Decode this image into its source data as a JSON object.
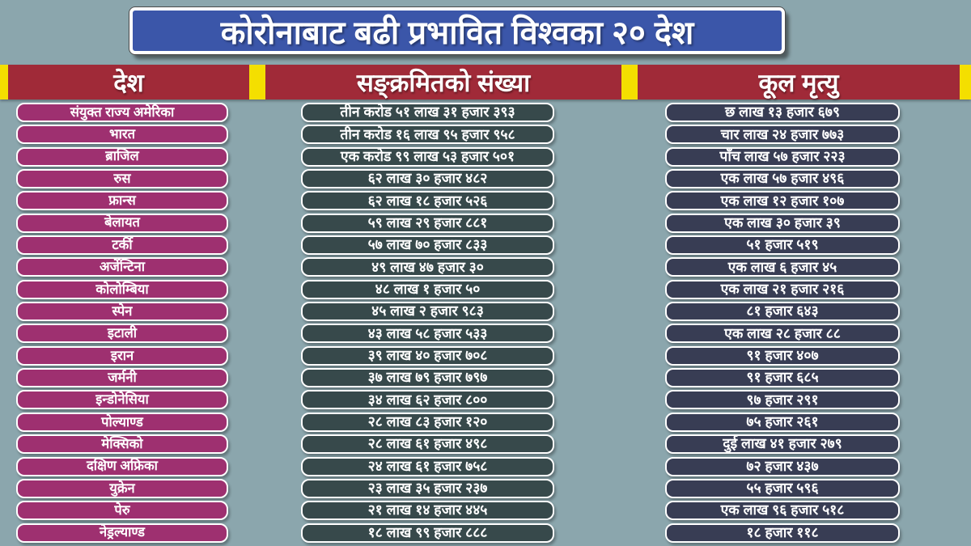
{
  "title": "कोरोनाबाट बढी प्रभावित विश्वका २० देश",
  "colors": {
    "background": "#8BA6AD",
    "title_banner": "#3B56A9",
    "header_band": "#A02A38",
    "separator_yellow": "#F4DF00",
    "country_pill": "#9E3070",
    "infected_pill": "#37494B",
    "deaths_pill": "#383D54",
    "text": "#FFFFFF"
  },
  "header": {
    "country": "देश",
    "infected": "सङ्क्रमितको संख्या",
    "deaths": "कूल मृत्यु"
  },
  "table": {
    "rows": [
      {
        "country": "संयुक्त राज्य अमेरिका",
        "infected": "तीन करोड ५१ लाख ३१ हजार ३९३",
        "deaths": "छ लाख १३ हजार ६७९"
      },
      {
        "country": "भारत",
        "infected": "तीन करोड १६ लाख ९५ हजार ९५८",
        "deaths": "चार लाख २४ हजार ७७३"
      },
      {
        "country": "ब्राजिल",
        "infected": "एक करोड ९९ लाख ५३ हजार ५०१",
        "deaths": "पाँच लाख ५७ हजार २२३"
      },
      {
        "country": "रुस",
        "infected": "६२ लाख ३० हजार ४८२",
        "deaths": "एक लाख ५७ हजार ४९६"
      },
      {
        "country": "फ्रान्स",
        "infected": "६२ लाख १८ हजार ५२६",
        "deaths": "एक लाख १२ हजार १०७"
      },
      {
        "country": "बेलायत",
        "infected": "५९ लाख २९ हजार ८८१",
        "deaths": "एक लाख ३० हजार ३९"
      },
      {
        "country": "टर्की",
        "infected": "५७ लाख ७०  हजार ८३३",
        "deaths": "५१ हजार ५१९"
      },
      {
        "country": "अर्जेन्टिना",
        "infected": "४९ लाख ४७  हजार ३०",
        "deaths": "एक लाख ६ हजार ४५"
      },
      {
        "country": "कोलोम्बिया",
        "infected": "४८ लाख १ हजार ५०",
        "deaths": "एक लाख २१ हजार २१६"
      },
      {
        "country": "स्पेन",
        "infected": "४५ लाख २  हजार ९८३",
        "deaths": "८१ हजार ६४३"
      },
      {
        "country": "इटाली",
        "infected": "४३ लाख ५८ हजार ५३३",
        "deaths": "एक लाख २८ हजार ८८"
      },
      {
        "country": "इरान",
        "infected": "३९ लाख ४० हजार ७०८",
        "deaths": "९१ हजार ४०७"
      },
      {
        "country": "जर्मनी",
        "infected": "३७ लाख ७९ हजार ७९७",
        "deaths": "९१ हजार ६८५"
      },
      {
        "country": "इन्डोनेसिया",
        "infected": "३४ लाख ६२  हजार ८००",
        "deaths": "९७ हजार २९१"
      },
      {
        "country": "पोल्याण्ड",
        "infected": "२८ लाख ८३ हजार १२०",
        "deaths": "७५ हजार २६१"
      },
      {
        "country": "मेक्सिको",
        "infected": "२८ लाख ६१ हजार ४९८",
        "deaths": "दुई लाख ४१ हजार २७९"
      },
      {
        "country": "दक्षिण अफ्रिका",
        "infected": "२४ लाख ६१ हजार ७५८",
        "deaths": "७२ हजार ४३७"
      },
      {
        "country": "युक्रेन",
        "infected": "२३  लाख ३५ हजार २३७",
        "deaths": "५५ हजार ५९६"
      },
      {
        "country": "पेरु",
        "infected": "२१ लाख १४ हजार ४४५",
        "deaths": "एक लाख ९६ हजार ५१८"
      },
      {
        "country": "नेड्रल्याण्ड",
        "infected": "१८ लाख ९९ हजार ८८८",
        "deaths": "१८ हजार ११८"
      }
    ]
  },
  "chart_data": {
    "type": "table",
    "title": "कोरोनाबाट बढी प्रभावित विश्वका २० देश",
    "columns": [
      "देश",
      "सङ्क्रमितको संख्या",
      "कूल मृत्यु"
    ],
    "categories": [
      "संयुक्त राज्य अमेरिका",
      "भारत",
      "ब्राजिल",
      "रुस",
      "फ्रान्स",
      "बेलायत",
      "टर्की",
      "अर्जेन्टिना",
      "कोलोम्बिया",
      "स्पेन",
      "इटाली",
      "इरान",
      "जर्मनी",
      "इन्डोनेसिया",
      "पोल्याण्ड",
      "मेक्सिको",
      "दक्षिण अफ्रिका",
      "युक्रेन",
      "पेरु",
      "नेड्रल्याण्ड"
    ],
    "series": [
      {
        "name": "infected_numeric",
        "values": [
          35131393,
          31695958,
          19953501,
          6230482,
          6218526,
          5929881,
          5770833,
          4947030,
          4801050,
          4502983,
          4358533,
          3940708,
          3779797,
          3462800,
          2883120,
          2861498,
          2461758,
          2335237,
          2114445,
          1899888
        ]
      },
      {
        "name": "deaths_numeric",
        "values": [
          613679,
          424773,
          557223,
          157496,
          112107,
          130039,
          51519,
          106045,
          121216,
          81643,
          128088,
          91407,
          91685,
          97291,
          75261,
          241279,
          72437,
          55596,
          196518,
          18118
        ]
      }
    ]
  }
}
